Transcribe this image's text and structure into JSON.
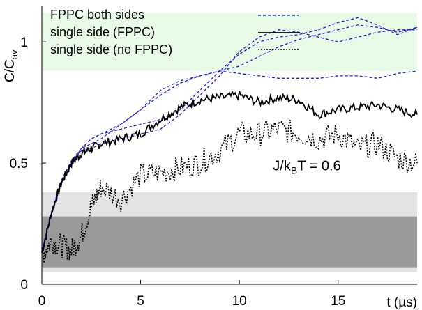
{
  "chart_data": {
    "type": "line",
    "xlabel": "t (µs)",
    "ylabel_main": "C/C",
    "ylabel_sub": "av",
    "xlim": [
      0,
      19
    ],
    "ylim": [
      0,
      1.15
    ],
    "x_ticks": [
      0,
      5,
      10,
      15
    ],
    "x_tick_labels": [
      "0",
      "5",
      "10",
      "15"
    ],
    "y_ticks": [
      0,
      0.5,
      1
    ],
    "y_tick_labels": [
      "0",
      "0.5",
      "1"
    ],
    "grid": false,
    "legend_position": "top-left",
    "bands": [
      {
        "y_range": [
          0.88,
          1.12
        ],
        "color": "#e8fbe6"
      },
      {
        "y_range": [
          0.05,
          0.38
        ],
        "color": "#e3e3e3"
      },
      {
        "y_range": [
          0.07,
          0.28
        ],
        "color": "#9a9a9a"
      }
    ],
    "annotation": {
      "prefix": "J/k",
      "sub": "B",
      "suffix": "T = 0.6",
      "x": 11.7,
      "y": 0.47
    },
    "legend": [
      {
        "text": "FPPC both sides",
        "color": "#1b1bd8",
        "dash": "4,3",
        "width": 1.3
      },
      {
        "text": "single side (FPPC)",
        "color": "#000000",
        "dash": "",
        "width": 1.8
      },
      {
        "text": "single side (no FPPC)",
        "color": "#000000",
        "dash": "2,2",
        "width": 1.6
      }
    ],
    "series": [
      {
        "style": "fppc-both",
        "x": [
          0,
          0.5,
          1,
          1.5,
          2,
          2.5,
          3,
          4,
          5,
          6,
          7,
          8,
          9,
          10,
          11,
          12,
          13,
          14,
          15,
          16,
          17,
          18,
          19
        ],
        "values": [
          0.13,
          0.3,
          0.42,
          0.5,
          0.56,
          0.6,
          0.62,
          0.66,
          0.72,
          0.8,
          0.84,
          0.86,
          0.88,
          0.87,
          0.86,
          0.85,
          0.85,
          0.85,
          0.86,
          0.86,
          0.85,
          0.87,
          0.88
        ]
      },
      {
        "style": "fppc-both",
        "x": [
          0,
          0.5,
          1,
          1.5,
          2,
          2.5,
          3,
          4,
          5,
          6,
          7,
          8,
          9,
          10,
          11,
          12,
          13,
          14,
          15,
          16,
          17,
          18,
          19
        ],
        "values": [
          0.14,
          0.3,
          0.43,
          0.51,
          0.56,
          0.58,
          0.6,
          0.66,
          0.72,
          0.78,
          0.83,
          0.86,
          0.88,
          0.9,
          0.94,
          0.98,
          1.01,
          1.03,
          1.05,
          1.07,
          1.06,
          1.04,
          1.06
        ]
      },
      {
        "style": "fppc-both",
        "x": [
          0,
          0.5,
          1,
          1.5,
          2,
          2.5,
          3,
          4,
          5,
          6,
          7,
          8,
          9,
          10,
          11,
          12,
          13,
          14,
          15,
          16,
          17,
          18,
          19
        ],
        "values": [
          0.13,
          0.29,
          0.42,
          0.5,
          0.56,
          0.6,
          0.62,
          0.64,
          0.66,
          0.68,
          0.72,
          0.8,
          0.88,
          0.95,
          1.0,
          1.02,
          1.03,
          1.05,
          1.08,
          1.1,
          1.07,
          1.03,
          1.06
        ]
      },
      {
        "style": "fppc-both",
        "x": [
          0,
          0.5,
          1,
          1.5,
          2,
          2.5,
          3,
          4,
          5,
          6,
          7,
          8,
          9,
          10,
          11,
          12,
          13,
          14,
          15,
          16,
          17,
          18,
          19
        ],
        "values": [
          0.14,
          0.3,
          0.43,
          0.51,
          0.55,
          0.56,
          0.58,
          0.6,
          0.62,
          0.64,
          0.7,
          0.78,
          0.86,
          0.96,
          1.02,
          1.05,
          1.04,
          1.02,
          1.0,
          1.02,
          1.04,
          1.05,
          1.05
        ]
      },
      {
        "style": "single-fppc",
        "x": [
          0,
          0.5,
          1,
          1.5,
          2,
          2.5,
          3,
          4,
          5,
          6,
          7,
          8,
          9,
          10,
          11,
          12,
          13,
          14,
          15,
          16,
          17,
          18,
          19
        ],
        "values": [
          0.13,
          0.3,
          0.42,
          0.5,
          0.54,
          0.56,
          0.58,
          0.6,
          0.62,
          0.68,
          0.73,
          0.76,
          0.77,
          0.78,
          0.75,
          0.77,
          0.76,
          0.7,
          0.72,
          0.73,
          0.74,
          0.72,
          0.7
        ]
      },
      {
        "style": "single-nofppc",
        "x": [
          0,
          0.5,
          1,
          1.5,
          2,
          2.5,
          3,
          4,
          5,
          6,
          7,
          8,
          9,
          10,
          11,
          12,
          13,
          14,
          15,
          16,
          17,
          18,
          19
        ],
        "values": [
          0.12,
          0.18,
          0.16,
          0.14,
          0.2,
          0.32,
          0.4,
          0.35,
          0.45,
          0.46,
          0.48,
          0.5,
          0.55,
          0.62,
          0.62,
          0.64,
          0.62,
          0.6,
          0.62,
          0.56,
          0.58,
          0.52,
          0.5
        ]
      }
    ]
  }
}
